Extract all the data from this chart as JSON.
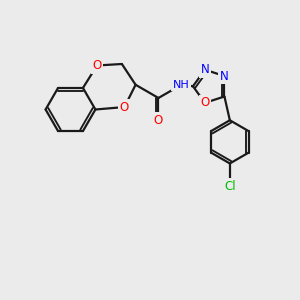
{
  "bg_color": "#ebebeb",
  "bond_color": "#1a1a1a",
  "bond_width": 1.6,
  "atom_colors": {
    "O": "#ff0000",
    "N": "#0000ff",
    "Cl": "#00bb00",
    "H": "#888888"
  },
  "font_size": 8.5
}
